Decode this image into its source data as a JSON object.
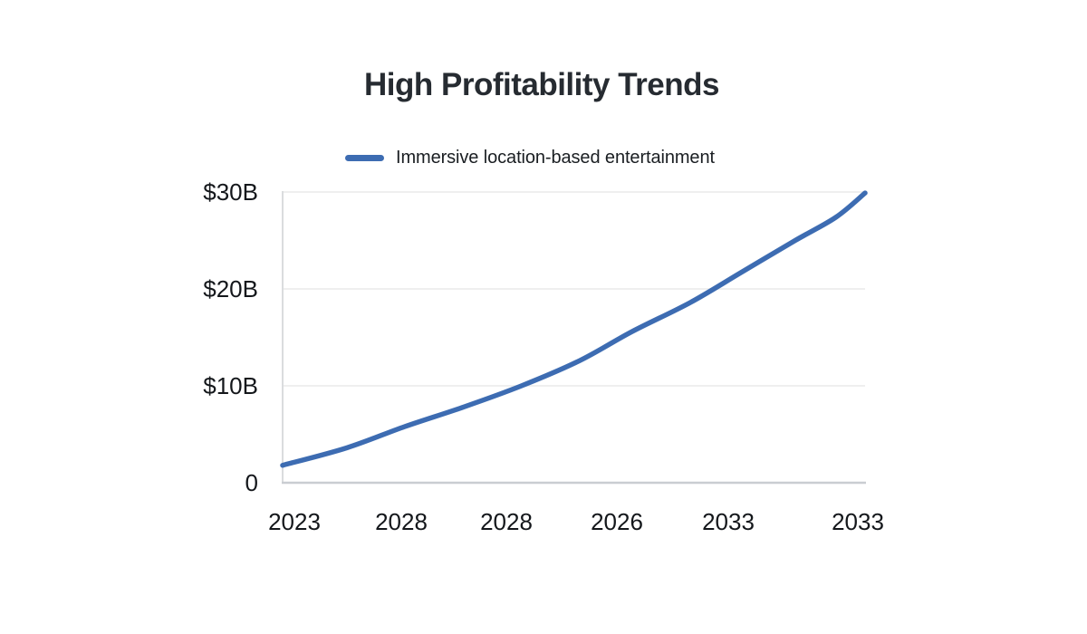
{
  "title": "High Profitability Trends",
  "legend": {
    "label": "Immersive location-based entertainment"
  },
  "colors": {
    "background": "#ffffff",
    "line": "#3d6cb2",
    "grid": "#efefef",
    "y_axis_line": "#dadcde",
    "x_axis_line": "#c9cdd2",
    "title_text": "#262b31",
    "tick_text": "#14171b"
  },
  "chart_data": {
    "type": "line",
    "title": "High Profitability Trends",
    "xlabel": "",
    "ylabel": "",
    "x_tick_labels": [
      "2023",
      "2028",
      "2028",
      "2026",
      "2033",
      "2033"
    ],
    "y_tick_labels": [
      "$30B",
      "$20B",
      "$10B",
      "0"
    ],
    "y_tick_values": [
      30,
      20,
      10,
      0
    ],
    "ylim": [
      0,
      30
    ],
    "grid": "horizontal-only",
    "legend_position": "top-center",
    "series": [
      {
        "name": "Immersive location-based entertainment",
        "color": "#3d6cb2",
        "unit": "billion USD",
        "points": [
          {
            "x": 0.0,
            "value": 1.8
          },
          {
            "x": 0.11,
            "value": 3.6
          },
          {
            "x": 0.21,
            "value": 5.8
          },
          {
            "x": 0.31,
            "value": 7.8
          },
          {
            "x": 0.41,
            "value": 10.0
          },
          {
            "x": 0.51,
            "value": 12.6
          },
          {
            "x": 0.6,
            "value": 15.6
          },
          {
            "x": 0.7,
            "value": 18.6
          },
          {
            "x": 0.79,
            "value": 21.8
          },
          {
            "x": 0.88,
            "value": 25.0
          },
          {
            "x": 0.95,
            "value": 27.4
          },
          {
            "x": 1.0,
            "value": 29.9
          }
        ]
      }
    ]
  }
}
